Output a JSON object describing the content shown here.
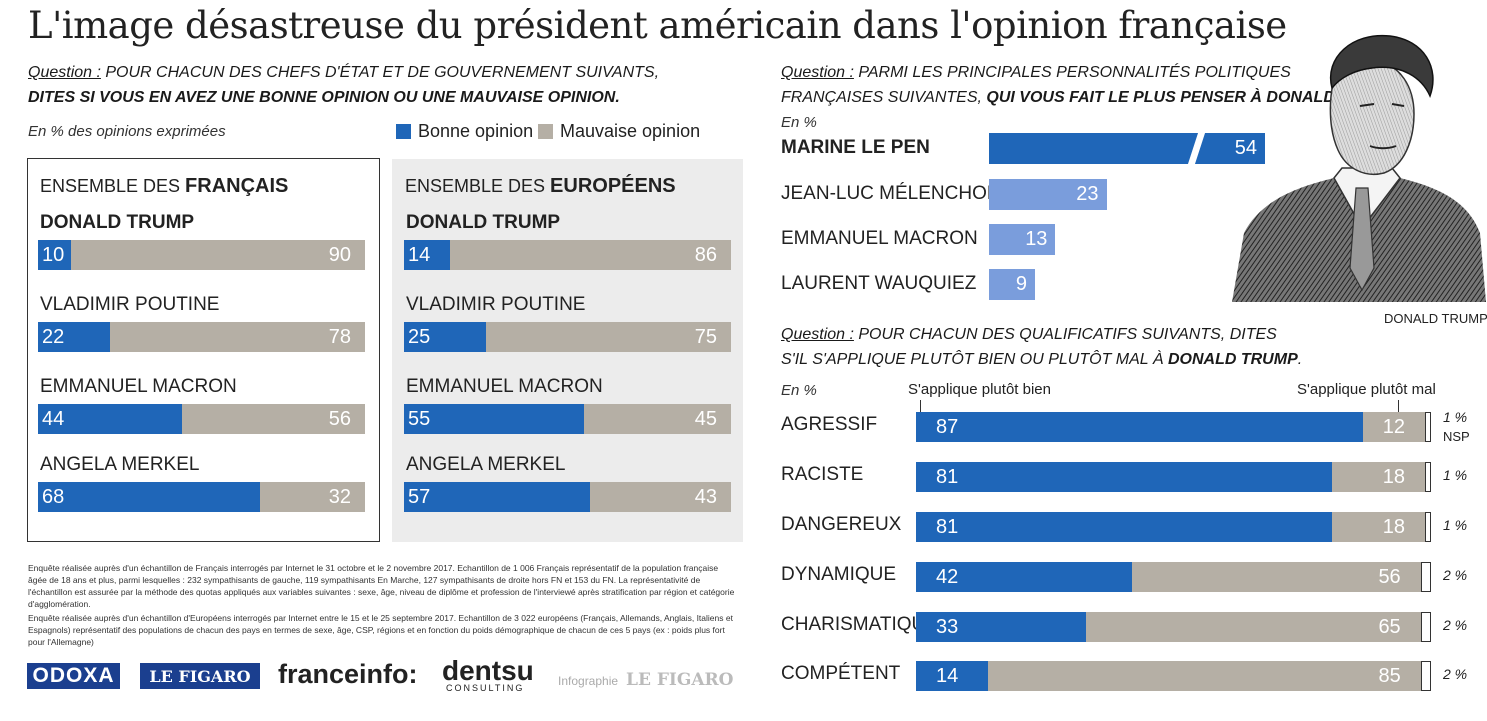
{
  "title": "L'image désastreuse du président américain dans l'opinion française",
  "q1": {
    "label": "Question :",
    "line1": " POUR CHACUN DES CHEFS D'ÉTAT ET DE GOUVERNEMENT SUIVANTS,",
    "line2": "DITES SI VOUS EN AVEZ UNE BONNE OPINION OU UNE MAUVAISE OPINION.",
    "unit": "En % des opinions exprimées"
  },
  "legend": {
    "good": "Bonne opinion",
    "bad": "Mauvaise opinion"
  },
  "colors": {
    "good": "#1f66b8",
    "bad": "#b5afa5",
    "light_blue": "#7a9ddc"
  },
  "panel_fr": {
    "prefix": "ENSEMBLE DES ",
    "bold": "FRANÇAIS"
  },
  "panel_eu": {
    "prefix": "ENSEMBLE DES ",
    "bold": "EUROPÉENS"
  },
  "q2": {
    "label": "Question :",
    "line1": " PARMI LES PRINCIPALES PERSONNALITÉS POLITIQUES",
    "line2a": "FRANÇAISES SUIVANTES, ",
    "line2b": "QUI VOUS FAIT LE PLUS PENSER À DONALD TRUMP",
    "line2c": " ?",
    "unit": "En %"
  },
  "portrait_caption": "DONALD TRUMP",
  "q3": {
    "label": "Question :",
    "line1": " POUR CHACUN DES QUALIFICATIFS SUIVANTS, DITES",
    "line2a": "S'IL S'APPLIQUE PLUTÔT BIEN OU PLUTÔT MAL À ",
    "line2b": "DONALD TRUMP",
    "line2c": ".",
    "unit": "En %",
    "col_good": "S'applique plutôt bien",
    "col_bad": "S'applique plutôt mal"
  },
  "notes": [
    "Enquête réalisée auprès d'un échantillon de Français interrogés par Internet le 31 octobre et le 2 novembre 2017. Echantillon de 1 006 Français représentatif de la population française âgée de 18 ans et plus, parmi lesquelles : 232 sympathisants de gauche, 119 sympathisants En Marche, 127 sympathisants de droite hors FN et 153 du FN. La représentativité de l'échantillon est assurée par la méthode des quotas appliqués aux variables suivantes : sexe, âge, niveau de diplôme et profession de l'interviewé après stratification par région et catégorie d'agglomération.",
    "Enquête réalisée auprès d'un échantillon d'Européens interrogés par Internet entre le 15 et le 25 septembre 2017. Echantillon de 3 022 européens (Français, Allemands, Anglais, Italiens et Espagnols) représentatif des populations de chacun des pays en termes de sexe, âge, CSP, régions et en fonction du poids démographique de chacun de ces 5 pays (ex : poids plus fort pour l'Allemagne)"
  ],
  "logos": {
    "odoxa": "ODOXA",
    "figaro": "LE FIGARO",
    "franceinfo": "franceinfo:",
    "dentsu": "dentsu",
    "dentsu_sub": "CONSULTING",
    "infographie": "Infographie",
    "infographie_brand": "LE FIGARO"
  },
  "chart_data": [
    {
      "type": "bar",
      "title": "ENSEMBLE DES FRANÇAIS",
      "categories": [
        "DONALD TRUMP",
        "VLADIMIR POUTINE",
        "EMMANUEL MACRON",
        "ANGELA MERKEL"
      ],
      "series": [
        {
          "name": "Bonne opinion",
          "values": [
            10,
            22,
            44,
            68
          ]
        },
        {
          "name": "Mauvaise opinion",
          "values": [
            90,
            78,
            56,
            32
          ]
        }
      ],
      "stacked": true
    },
    {
      "type": "bar",
      "title": "ENSEMBLE DES EUROPÉENS",
      "categories": [
        "DONALD TRUMP",
        "VLADIMIR POUTINE",
        "EMMANUEL MACRON",
        "ANGELA MERKEL"
      ],
      "series": [
        {
          "name": "Bonne opinion",
          "values": [
            14,
            25,
            55,
            57
          ]
        },
        {
          "name": "Mauvaise opinion",
          "values": [
            86,
            75,
            45,
            43
          ]
        }
      ],
      "stacked": true
    },
    {
      "type": "bar",
      "categories": [
        "MARINE LE PEN",
        "JEAN-LUC MÉLENCHON",
        "EMMANUEL MACRON",
        "LAURENT WAUQUIEZ"
      ],
      "values": [
        54,
        23,
        13,
        9
      ]
    },
    {
      "type": "bar",
      "categories": [
        "AGRESSIF",
        "RACISTE",
        "DANGEREUX",
        "DYNAMIQUE",
        "CHARISMATIQUE",
        "COMPÉTENT"
      ],
      "series": [
        {
          "name": "S'applique plutôt bien",
          "values": [
            87,
            81,
            81,
            42,
            33,
            14
          ]
        },
        {
          "name": "S'applique plutôt mal",
          "values": [
            12,
            18,
            18,
            56,
            65,
            85
          ]
        },
        {
          "name": "NSP",
          "values": [
            1,
            1,
            1,
            2,
            2,
            2
          ]
        }
      ],
      "nsp_labels": [
        "1 %",
        "1 %",
        "1 %",
        "2 %",
        "2 %",
        "2 %"
      ],
      "nsp_note": "NSP",
      "stacked": true
    }
  ]
}
